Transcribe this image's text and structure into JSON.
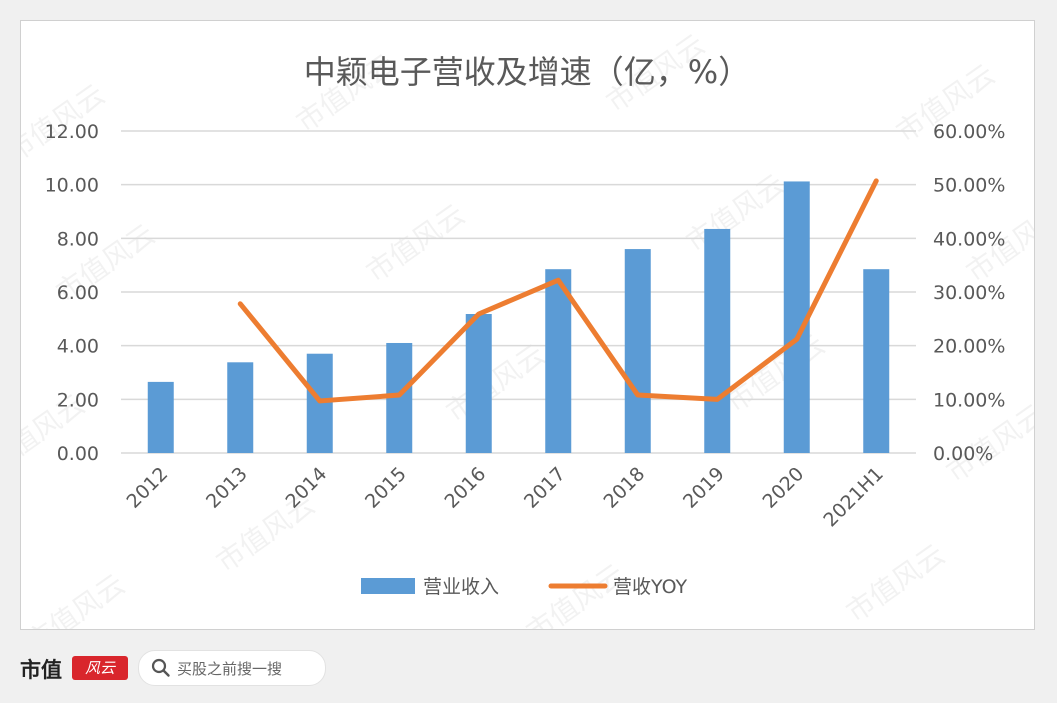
{
  "chart_data": {
    "type": "bar+line",
    "title": "中颖电子营收及增速（亿，%）",
    "categories": [
      "2012",
      "2013",
      "2014",
      "2015",
      "2016",
      "2017",
      "2018",
      "2019",
      "2020",
      "2021H1"
    ],
    "series": [
      {
        "name": "营业收入",
        "type": "bar",
        "axis": "left",
        "values": [
          2.65,
          3.38,
          3.7,
          4.1,
          5.18,
          6.85,
          7.6,
          8.35,
          10.12,
          6.85
        ]
      },
      {
        "name": "营收YOY",
        "type": "line",
        "axis": "right",
        "values": [
          null,
          27.8,
          9.7,
          10.8,
          25.9,
          32.2,
          10.8,
          10.0,
          21.2,
          50.7
        ]
      }
    ],
    "y_left": {
      "min": 0,
      "max": 12,
      "ticks": [
        "0.00",
        "2.00",
        "4.00",
        "6.00",
        "8.00",
        "10.00",
        "12.00"
      ]
    },
    "y_right": {
      "min": 0,
      "max": 60,
      "ticks": [
        "0.00%",
        "10.00%",
        "20.00%",
        "30.00%",
        "40.00%",
        "50.00%",
        "60.00%"
      ]
    },
    "grid": true,
    "legend": "bottom",
    "colors": {
      "bar": "#5b9bd5",
      "line": "#ed7d31",
      "grid": "#d9d9d9",
      "text": "#595959"
    }
  },
  "watermark": "市值风云",
  "footer": {
    "brand": "市值",
    "logo": "风云",
    "search_text": "买股之前搜一搜"
  }
}
